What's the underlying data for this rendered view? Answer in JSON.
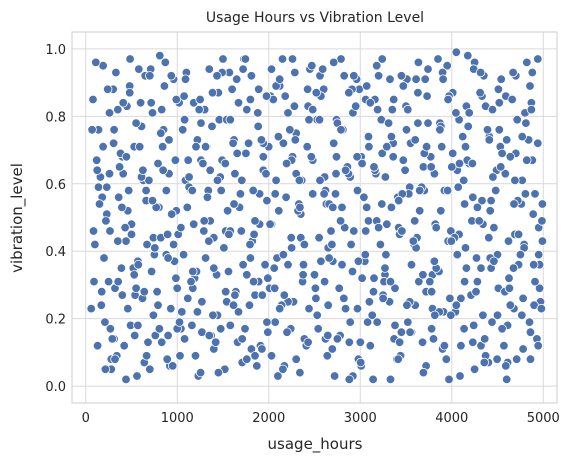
{
  "chart_data": {
    "type": "scatter",
    "title": "Usage Hours vs Vibration Level",
    "xlabel": "usage_hours",
    "ylabel": "vibration_level",
    "xlim": [
      -150,
      5150
    ],
    "ylim": [
      -0.05,
      1.05
    ],
    "x_ticks": [
      0,
      1000,
      2000,
      3000,
      4000,
      5000
    ],
    "y_ticks": [
      0.0,
      0.2,
      0.4,
      0.6,
      0.8,
      1.0
    ],
    "x_tick_labels": [
      "0",
      "1000",
      "2000",
      "3000",
      "4000",
      "5000"
    ],
    "y_tick_labels": [
      "0.0",
      "0.2",
      "0.4",
      "0.6",
      "0.8",
      "1.0"
    ],
    "grid": true,
    "legend": "none",
    "point_color": "#4c72b0",
    "point_edge_color": "#ffffff",
    "grid_color": "#d9d9d9",
    "background_color": "#ffffff",
    "points_x": [
      80,
      160,
      250,
      330,
      420,
      500,
      610,
      700,
      790,
      880,
      960,
      1050,
      1150,
      1230,
      1320,
      1400,
      1500,
      1580,
      1680,
      1760,
      1850,
      1940,
      2030,
      2120,
      2210,
      2300,
      2390,
      2480,
      2560,
      2650,
      2740,
      2830,
      2920,
      3010,
      3090,
      3180,
      3270,
      3360,
      3450,
      3540,
      3630,
      3720,
      3810,
      3900,
      3990,
      4080,
      4160,
      4250,
      4340,
      4430,
      4520,
      4610,
      4700,
      4790,
      4880,
      4970,
      100,
      190,
      280,
      360,
      450,
      540,
      630,
      720,
      810,
      900,
      990,
      1080,
      1170,
      1260,
      1350,
      1440,
      1530,
      1620,
      1710,
      1800,
      1890,
      1980,
      2070,
      2160,
      2250,
      2340,
      2430,
      2520,
      2610,
      2700,
      2790,
      2880,
      2970,
      3060,
      3150,
      3240,
      3330,
      3420,
      3510,
      3600,
      3690,
      3780,
      3870,
      3960,
      4050,
      4140,
      4230,
      4320,
      4410,
      4500,
      4590,
      4680,
      4770,
      4860,
      4950,
      60,
      140,
      230,
      310,
      400,
      480,
      570,
      660,
      740,
      830,
      920,
      1010,
      1100,
      1190,
      1280,
      1370,
      1460,
      1550,
      1640,
      1730,
      1820,
      1910,
      2000,
      2090,
      2180,
      2270,
      2360,
      2450,
      2540,
      2630,
      2720,
      2810,
      2900,
      2990,
      3080,
      3170,
      3260,
      3350,
      3440,
      3530,
      3620,
      3710,
      3800,
      3890,
      3980,
      4070,
      4160,
      4250,
      4340,
      4430,
      4520,
      4610,
      4700,
      4790,
      4880,
      4960,
      120,
      210,
      300,
      390,
      470,
      560,
      650,
      740,
      830,
      910,
      1000,
      1090,
      1180,
      1270,
      1360,
      1450,
      1540,
      1630,
      1720,
      1810,
      1900,
      1990,
      2080,
      2170,
      2260,
      2350,
      2440,
      2530,
      2620,
      2710,
      2800,
      2890,
      2980,
      3070,
      3160,
      3250,
      3340,
      3430,
      3520,
      3610,
      3700,
      3790,
      3880,
      3970,
      4060,
      4150,
      4240,
      4330,
      4420,
      4510,
      4600,
      4690,
      4780,
      4870,
      4960,
      90,
      180,
      270,
      350,
      440,
      530,
      620,
      710,
      800,
      890,
      980,
      1070,
      1160,
      1250,
      1340,
      1430,
      1520,
      1610,
      1700,
      1790,
      1880,
      1970,
      2060,
      2150,
      2240,
      2330,
      2420,
      2510,
      2600,
      2690,
      2780,
      2870,
      2960,
      3050,
      3140,
      3230,
      3320,
      3410,
      3500,
      3590,
      3680,
      3770,
      3860,
      3950,
      4040,
      4130,
      4220,
      4310,
      4400,
      4490,
      4580,
      4670,
      4760,
      4850,
      4940,
      150,
      240,
      320,
      410,
      490,
      580,
      670,
      760,
      850,
      940,
      1030,
      1120,
      1210,
      1300,
      1390,
      1480,
      1570,
      1660,
      1750,
      1840,
      1930,
      2020,
      2110,
      2200,
      2290,
      2380,
      2470,
      2560,
      2650,
      2740,
      2830,
      2920,
      3010,
      3100,
      3190,
      3280,
      3370,
      3460,
      3550,
      3640,
      3730,
      3820,
      3910,
      4000,
      4090,
      4180,
      4270,
      4360,
      4450,
      4540,
      4630,
      4720,
      4810,
      4900,
      4990,
      70,
      170,
      260,
      340,
      430,
      520,
      600,
      690,
      780,
      870,
      960,
      1040,
      1130,
      1220,
      1310,
      1400,
      1490,
      1580,
      1670,
      1760,
      1850,
      1940,
      2030,
      2120,
      2210,
      2300,
      2390,
      2480,
      2570,
      2660,
      2750,
      2840,
      2930,
      3020,
      3110,
      3200,
      3290,
      3380,
      3470,
      3560,
      3650,
      3740,
      3830,
      3920,
      4010,
      4100,
      4190,
      4280,
      4370,
      4460,
      4550,
      4640,
      4730,
      4820,
      4910,
      130,
      220,
      310,
      400,
      480,
      570,
      660,
      750,
      840,
      930,
      1020,
      1110,
      1200,
      1290,
      1380,
      1470,
      1560,
      1650,
      1740,
      1830,
      1920,
      2010,
      2100,
      2190,
      2280,
      2370,
      2460,
      2550,
      2640,
      2730,
      2820,
      2910,
      3000,
      3090,
      3180,
      3270,
      3360,
      3450,
      3540,
      3630,
      3720,
      3810,
      3900,
      3990,
      4080,
      4170,
      4260,
      4350,
      4440,
      4530,
      4620,
      4710,
      4800,
      4890,
      4980,
      110,
      200,
      290,
      380,
      460,
      550,
      640,
      730,
      820,
      910,
      1000,
      1090,
      1180,
      1270,
      1360,
      1450,
      1540,
      1630,
      1720,
      1810,
      1900,
      1990,
      2080,
      2170,
      2260,
      2350,
      2440,
      2530,
      2620,
      2710,
      2800,
      2890,
      2980,
      3070,
      3160,
      3250,
      3340,
      3430,
      3520,
      3610,
      3700,
      3790,
      3880,
      3970,
      4060,
      4150,
      4240,
      4330,
      4420,
      4510,
      4600,
      4690,
      4780,
      4870,
      4950,
      170,
      260,
      350,
      440,
      530,
      610,
      700,
      790,
      880,
      970,
      1060,
      1150,
      1240,
      1330,
      1420,
      1510,
      1600,
      1690,
      1780,
      1870,
      1960,
      2050,
      2140,
      2230,
      2320,
      2410,
      2500,
      2590,
      2680,
      2770,
      2860,
      2950,
      3040,
      3130,
      3220,
      3310,
      3400,
      3490,
      3580,
      3670,
      3760,
      3850,
      3940,
      4030,
      4120,
      4210,
      4300,
      4390,
      4480,
      4570,
      4660,
      4750,
      4840,
      4930,
      140,
      230,
      320,
      410,
      500,
      590,
      680,
      770,
      860,
      950,
      1040,
      1130,
      1220,
      1310,
      1400,
      1490,
      1580,
      1670,
      1760,
      1850,
      1940,
      2030,
      2120,
      2210,
      2300,
      2390,
      2480,
      2570,
      2660,
      2750,
      2840,
      2930,
      3020,
      3110,
      3200,
      3290,
      3380,
      3470,
      3560,
      3650,
      3740,
      3830,
      3920,
      4010,
      4100,
      4190,
      4280,
      4370,
      4460,
      4550,
      4640,
      4730,
      4820,
      4910,
      4990,
      190,
      280,
      370,
      460,
      550,
      640,
      730,
      820,
      900,
      990,
      1080,
      1170,
      1260,
      1350,
      1440,
      1530,
      1620,
      1710,
      1800,
      1890,
      1980,
      2070,
      2160,
      2250,
      2340,
      2430,
      2520,
      2610,
      2700,
      2790,
      2880,
      2970,
      3060,
      3150,
      3240,
      3330,
      3420,
      3510,
      3600,
      3690,
      3780,
      3870,
      3960,
      4050,
      4140,
      4230,
      4320,
      4410,
      4500,
      4590,
      4680,
      4770,
      4860,
      4940,
      85,
      175,
      265,
      355,
      445,
      535,
      625,
      715,
      805,
      895,
      985,
      1075,
      1165,
      1255,
      1345,
      1435,
      1525,
      1615,
      1705,
      1795,
      1885,
      1975,
      2065,
      2155,
      2245,
      2335,
      2425,
      2515,
      2605,
      2695,
      2785,
      2875,
      2965,
      3055,
      3145,
      3235,
      3325,
      3415,
      3505,
      3595,
      3685,
      3775,
      3865,
      3955,
      4045,
      4135,
      4225,
      4315,
      4405,
      4495,
      4585,
      4675,
      4765,
      4855,
      4945,
      125,
      215,
      305,
      395,
      485,
      575,
      665,
      755,
      845,
      935,
      1025,
      1115,
      1205,
      1295,
      1385,
      1475,
      1565,
      1655,
      1745,
      1835,
      1925,
      2015,
      2105,
      2195,
      2285,
      2375,
      2465,
      2555,
      2645,
      2735,
      2825,
      2915,
      3005,
      3095,
      3185,
      3275,
      3365,
      3455,
      3545,
      3635,
      3725,
      3815,
      3905,
      3995,
      4085,
      4175,
      4265,
      4355,
      4445,
      4535,
      4625,
      4715,
      4805,
      4895,
      4985
    ],
    "points_y": [
      0.85,
      0.62,
      0.31,
      0.93,
      0.12,
      0.48,
      0.77,
      0.05,
      0.66,
      0.39,
      0.91,
      0.22,
      0.58,
      0.03,
      0.71,
      0.44,
      0.97,
      0.18,
      0.53,
      0.82,
      0.27,
      0.64,
      0.09,
      0.89,
      0.36,
      0.75,
      0.14,
      0.57,
      0.92,
      0.41,
      0.68,
      0.23,
      0.81,
      0.06,
      0.49,
      0.95,
      0.33,
      0.72,
      0.16,
      0.59,
      0.87,
      0.28,
      0.63,
      0.11,
      0.46,
      0.79,
      0.35,
      0.96,
      0.21,
      0.55,
      0.84,
      0.07,
      0.69,
      0.42,
      0.93,
      0.25,
      0.42,
      0.95,
      0.08,
      0.56,
      0.83,
      0.27,
      0.61,
      0.34,
      0.98,
      0.15,
      0.52,
      0.79,
      0.29,
      0.67,
      0.94,
      0.21,
      0.46,
      0.73,
      0.07,
      0.38,
      0.88,
      0.55,
      0.19,
      0.72,
      0.41,
      0.04,
      0.83,
      0.26,
      0.62,
      0.37,
      0.97,
      0.13,
      0.58,
      0.85,
      0.32,
      0.69,
      0.02,
      0.47,
      0.91,
      0.24,
      0.65,
      0.17,
      0.78,
      0.43,
      0.99,
      0.31,
      0.56,
      0.12,
      0.74,
      0.39,
      0.86,
      0.23,
      0.61,
      0.08,
      0.47,
      0.23,
      0.76,
      0.51,
      0.14,
      0.68,
      0.89,
      0.37,
      0.58,
      0.21,
      0.82,
      0.06,
      0.45,
      0.93,
      0.32,
      0.66,
      0.15,
      0.79,
      0.52,
      0.28,
      0.97,
      0.43,
      0.12,
      0.71,
      0.38,
      0.86,
      0.25,
      0.61,
      0.94,
      0.17,
      0.54,
      0.03,
      0.76,
      0.42,
      0.88,
      0.19,
      0.63,
      0.31,
      0.82,
      0.09,
      0.57,
      0.44,
      0.91,
      0.14,
      0.71,
      0.26,
      0.59,
      0.83,
      0.05,
      0.48,
      0.35,
      0.76,
      0.18,
      0.92,
      0.41,
      0.67,
      0.29,
      0.67,
      0.19,
      0.88,
      0.35,
      0.58,
      0.03,
      0.92,
      0.44,
      0.13,
      0.73,
      0.29,
      0.61,
      0.84,
      0.16,
      0.49,
      0.87,
      0.25,
      0.63,
      0.94,
      0.11,
      0.57,
      0.32,
      0.89,
      0.06,
      0.68,
      0.51,
      0.23,
      0.79,
      0.14,
      0.96,
      0.36,
      0.62,
      0.08,
      0.53,
      0.85,
      0.27,
      0.74,
      0.45,
      0.19,
      0.91,
      0.58,
      0.33,
      0.77,
      0.02,
      0.64,
      0.41,
      0.18,
      0.86,
      0.52,
      0.29,
      0.73,
      0.45,
      0.11,
      0.84,
      0.36,
      0.31,
      0.56,
      0.17,
      0.82,
      0.43,
      0.71,
      0.26,
      0.94,
      0.53,
      0.08,
      0.67,
      0.39,
      0.18,
      0.85,
      0.58,
      0.33,
      0.05,
      0.72,
      0.46,
      0.24,
      0.81,
      0.63,
      0.35,
      0.97,
      0.17,
      0.54,
      0.71,
      0.29,
      0.88,
      0.42,
      0.15,
      0.63,
      0.91,
      0.37,
      0.02,
      0.79,
      0.25,
      0.56,
      0.83,
      0.42,
      0.13,
      0.68,
      0.34,
      0.95,
      0.22,
      0.61,
      0.49,
      0.87,
      0.07,
      0.64,
      0.28,
      0.93,
      0.54,
      0.19,
      0.72,
      0.54,
      0.88,
      0.29,
      0.63,
      0.18,
      0.94,
      0.42,
      0.15,
      0.76,
      0.51,
      0.09,
      0.67,
      0.34,
      0.82,
      0.21,
      0.58,
      0.93,
      0.13,
      0.69,
      0.45,
      0.27,
      0.86,
      0.52,
      0.16,
      0.73,
      0.36,
      0.95,
      0.61,
      0.24,
      0.79,
      0.47,
      0.03,
      0.68,
      0.25,
      0.82,
      0.39,
      0.14,
      0.57,
      0.72,
      0.31,
      0.86,
      0.48,
      0.22,
      0.65,
      0.03,
      0.77,
      0.38,
      0.14,
      0.62,
      0.91,
      0.29,
      0.55,
      0.78,
      0.24,
      0.43,
      0.76,
      0.24,
      0.63,
      0.09,
      0.47,
      0.35,
      0.84,
      0.61,
      0.28,
      0.96,
      0.42,
      0.17,
      0.59,
      0.73,
      0.38,
      0.11,
      0.67,
      0.46,
      0.84,
      0.33,
      0.09,
      0.72,
      0.48,
      0.91,
      0.25,
      0.63,
      0.14,
      0.82,
      0.37,
      0.54,
      0.78,
      0.23,
      0.46,
      0.66,
      0.12,
      0.92,
      0.48,
      0.29,
      0.67,
      0.16,
      0.52,
      0.78,
      0.35,
      0.58,
      0.87,
      0.12,
      0.66,
      0.31,
      0.83,
      0.47,
      0.17,
      0.68,
      0.36,
      0.96,
      0.57,
      0.12,
      0.49,
      0.76,
      0.27,
      0.87,
      0.18,
      0.55,
      0.39,
      0.71,
      0.23,
      0.84,
      0.53,
      0.09,
      0.46,
      0.77,
      0.62,
      0.34,
      0.91,
      0.17,
      0.58,
      0.73,
      0.29,
      0.03,
      0.56,
      0.83,
      0.31,
      0.68,
      0.44,
      0.09,
      0.57,
      0.26,
      0.88,
      0.13,
      0.74,
      0.49,
      0.35,
      0.68,
      0.92,
      0.25,
      0.78,
      0.06,
      0.37,
      0.93,
      0.21,
      0.45,
      0.67,
      0.28,
      0.92,
      0.19,
      0.71,
      0.43,
      0.08,
      0.81,
      0.51,
      0.23,
      0.96,
      0.38,
      0.14,
      0.69,
      0.52,
      0.29,
      0.07,
      0.81,
      0.44,
      0.63,
      0.17,
      0.91,
      0.48,
      0.25,
      0.64,
      0.04,
      0.79,
      0.27,
      0.36,
      0.92,
      0.48,
      0.16,
      0.61,
      0.27,
      0.97,
      0.44,
      0.79,
      0.21,
      0.58,
      0.72,
      0.53,
      0.19,
      0.37,
      0.89,
      0.64,
      0.26,
      0.53,
      0.13,
      0.82,
      0.41,
      0.69,
      0.23,
      0.52,
      0.86,
      0.39,
      0.71,
      0.94,
      0.55,
      0.38,
      0.88,
      0.02,
      0.61,
      0.26,
      0.82,
      0.39,
      0.28,
      0.81,
      0.43,
      0.02,
      0.33,
      0.62,
      0.92,
      0.24,
      0.58,
      0.37,
      0.76,
      0.31,
      0.82,
      0.56,
      0.13,
      0.41,
      0.88,
      0.57,
      0.72,
      0.06,
      0.36,
      0.85,
      0.24,
      0.76,
      0.52,
      0.12,
      0.33,
      0.94,
      0.46,
      0.29,
      0.65,
      0.83,
      0.56,
      0.21,
      0.42,
      0.78,
      0.08,
      0.64,
      0.43,
      0.59,
      0.31,
      0.97,
      0.08,
      0.44,
      0.74,
      0.27,
      0.49,
      0.76,
      0.58,
      0.12,
      0.85,
      0.39,
      0.73,
      0.14,
      0.59,
      0.59,
      0.08,
      0.84,
      0.45,
      0.71,
      0.13,
      0.53,
      0.89,
      0.06,
      0.47,
      0.62,
      0.22,
      0.71,
      0.35,
      0.93,
      0.79,
      0.22,
      0.08,
      0.49,
      0.68,
      0.94,
      0.23,
      0.81,
      0.08,
      0.42,
      0.67,
      0.86,
      0.38,
      0.14,
      0.64,
      0.92,
      0.32,
      0.84,
      0.47,
      0.71,
      0.18,
      0.89,
      0.36,
      0.58,
      0.94,
      0.47,
      0.12,
      0.69,
      0.26,
      0.81,
      0.53,
      0.09,
      0.37,
      0.69,
      0.24,
      0.45,
      0.67,
      0.31,
      0.54,
      0.71,
      0.05,
      0.65,
      0.23,
      0.78,
      0.28,
      0.55,
      0.75,
      0.38,
      0.85,
      0.14,
      0.34,
      0.78,
      0.15,
      0.61,
      0.28,
      0.54,
      0.14,
      0.85,
      0.31,
      0.19,
      0.57,
      0.39,
      0.67,
      0.53,
      0.13,
      0.87,
      0.31,
      0.53,
      0.76,
      0.02,
      0.23,
      0.46,
      0.65,
      0.97,
      0.31,
      0.55,
      0.24,
      0.73,
      0.04,
      0.28,
      0.76,
      0.85,
      0.24,
      0.54,
      0.13,
      0.35,
      0.73,
      0.21,
      0.06,
      0.54,
      0.74,
      0.16,
      0.97,
      0.46,
      0.28,
      0.46,
      0.31,
      0.68,
      0.15,
      0.64,
      0.84,
      0.17,
      0.45,
      0.32,
      0.86,
      0.58,
      0.04,
      0.43,
      0.92,
      0.66,
      0.24,
      0.61,
      0.42,
      0.77,
      0.86,
      0.29,
      0.05,
      0.44,
      0.61,
      0.88,
      0.26,
      0.57,
      0.11,
      0.49,
      0.87,
      0.68,
      0.39,
      0.28,
      0.54,
      0.91,
      0.08,
      0.76,
      0.49,
      0.33,
      0.65,
      0.22,
      0.58,
      0.81,
      0.17,
      0.66,
      0.93,
      0.44,
      0.08,
      0.63,
      0.35,
      0.21,
      0.89,
      0.12,
      0.64,
      0.05,
      0.72,
      0.53,
      0.97,
      0.36,
      0.09,
      0.41,
      0.64,
      0.92,
      0.19,
      0.26,
      0.71,
      0.49,
      0.87,
      0.17,
      0.45,
      0.69,
      0.97,
      0.31,
      0.11,
      0.48,
      0.74,
      0.66,
      0.93,
      0.33,
      0.68,
      0.79,
      0.15,
      0.63,
      0.92,
      0.34,
      0.07,
      0.71,
      0.19,
      0.62,
      0.85,
      0.46,
      0.16,
      0.96,
      0.71,
      0.21,
      0.91,
      0.43,
      0.66,
      0.98,
      0.28,
      0.07,
      0.82,
      0.65,
      0.32,
      0.79,
      0.57,
      0.36,
      0.49,
      0.87,
      0.21
    ]
  }
}
